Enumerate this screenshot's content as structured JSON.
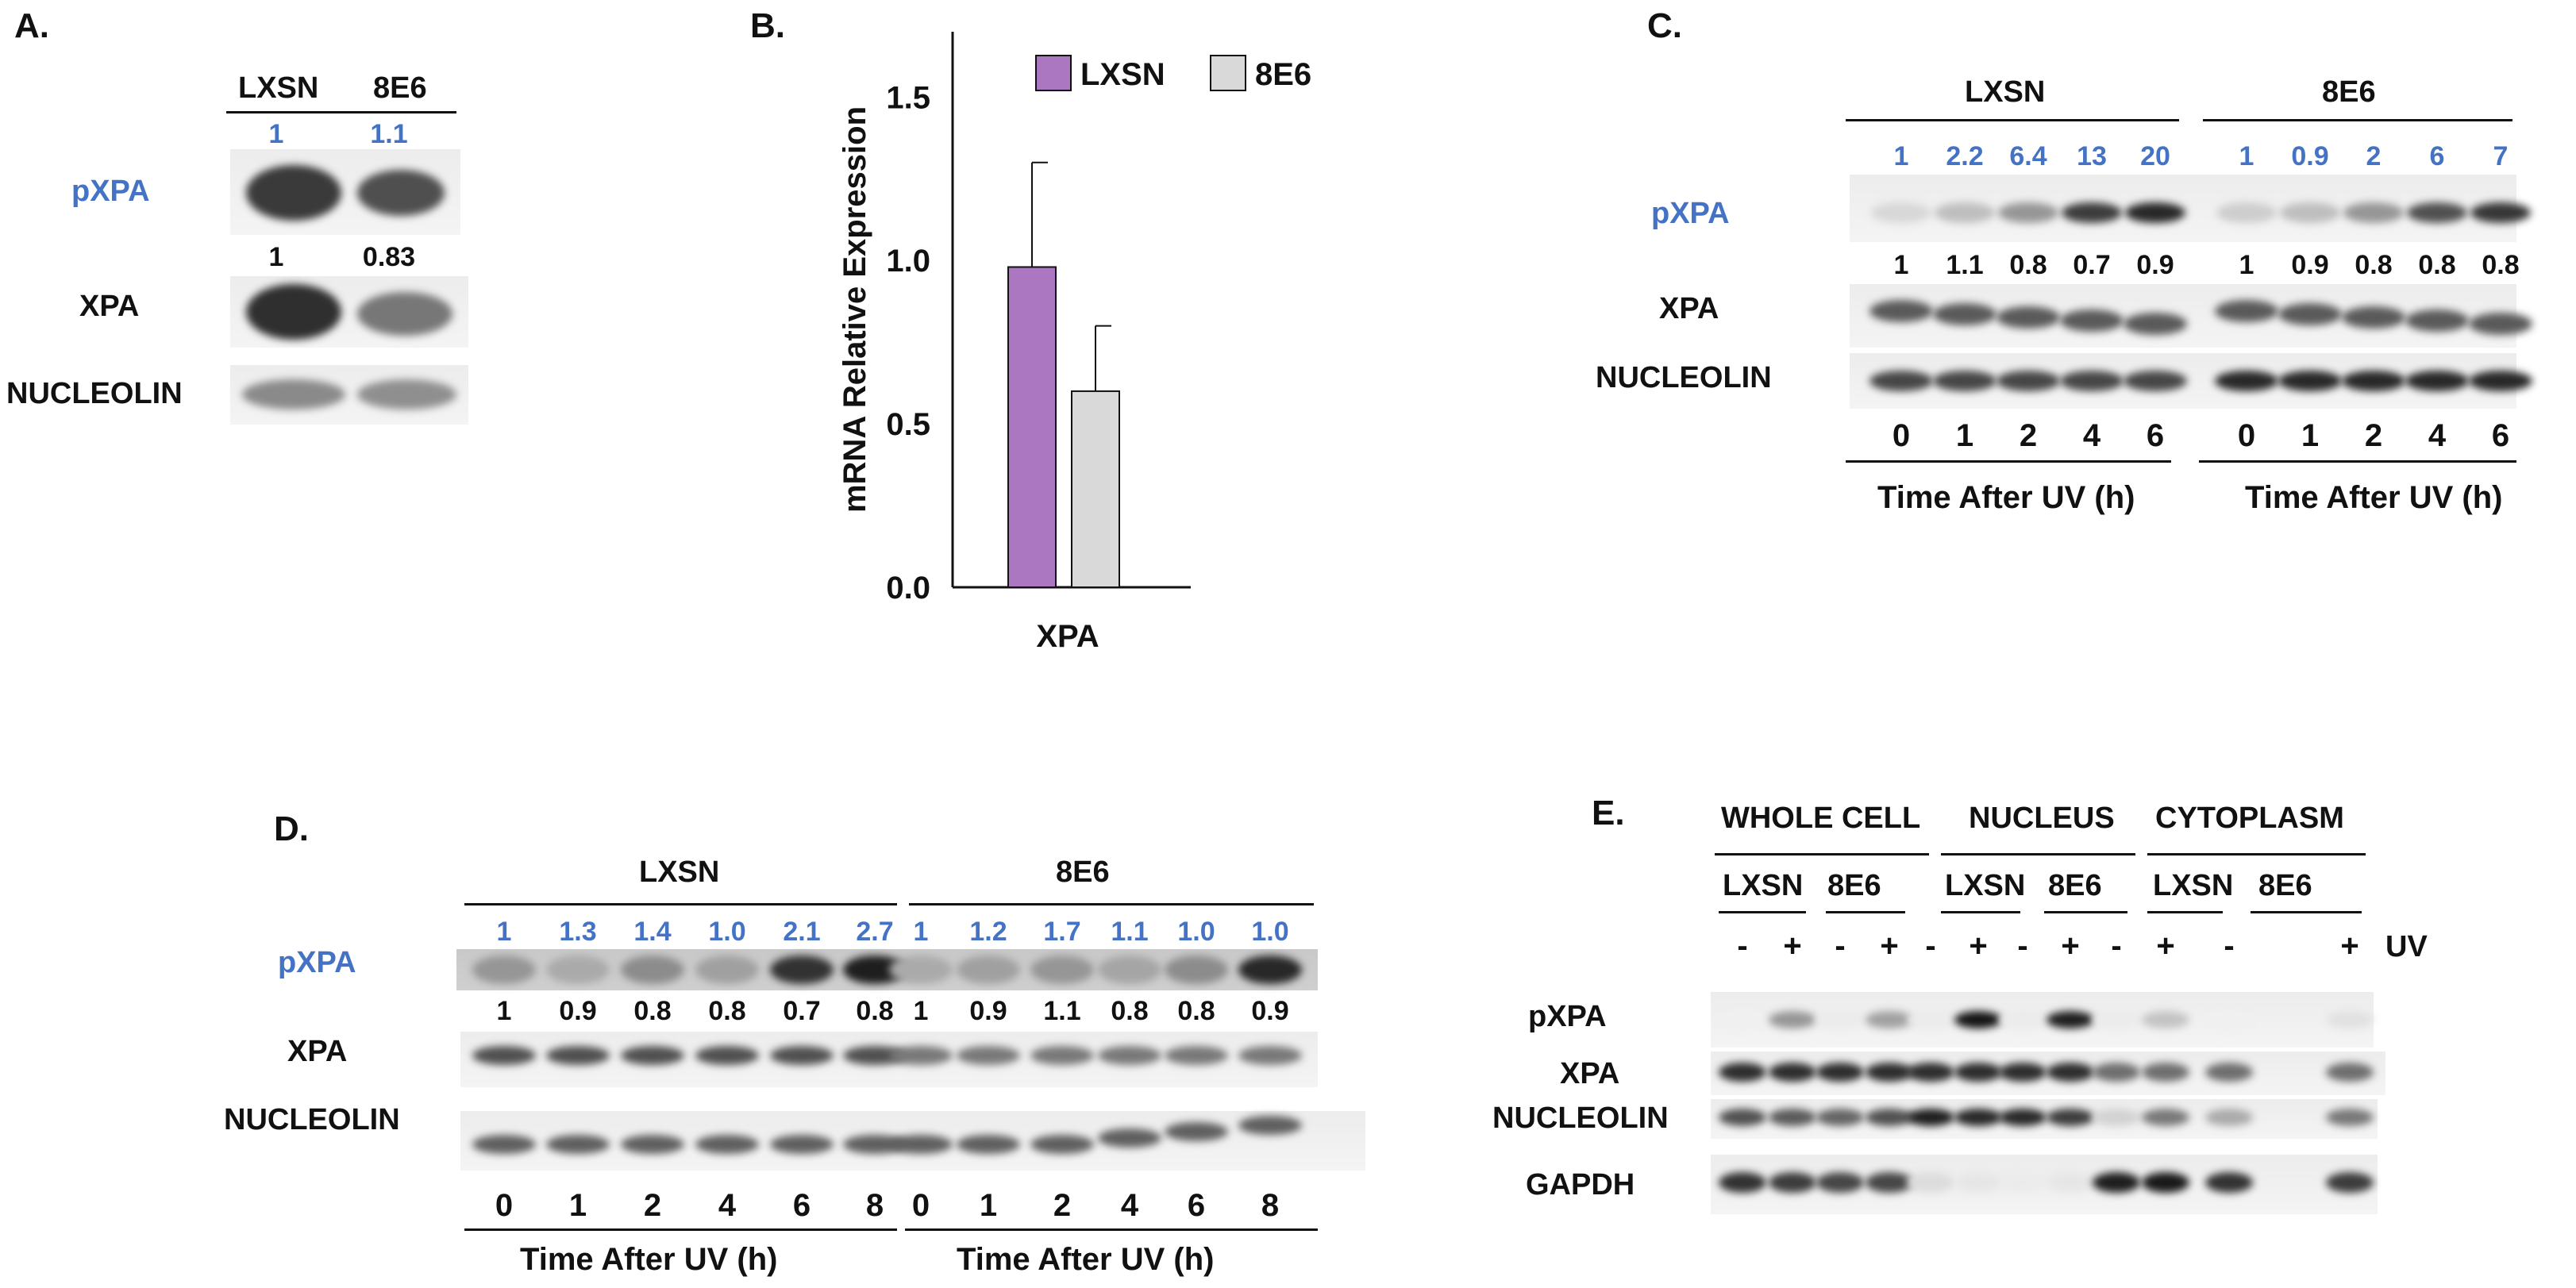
{
  "panelA": {
    "label": "A.",
    "lanes": [
      "LXSN",
      "8E6"
    ],
    "rows": [
      "pXPA",
      "XPA",
      "NUCLEOLIN"
    ],
    "pxpa_quant": [
      "1",
      "1.1"
    ],
    "xpa_quant": [
      "1",
      "0.83"
    ]
  },
  "panelB": {
    "label": "B.",
    "legend": [
      "LXSN",
      "8E6"
    ]
  },
  "chart_data": {
    "type": "bar",
    "title": "",
    "categories": [
      "XPA"
    ],
    "series": [
      {
        "name": "LXSN",
        "values": [
          0.98
        ],
        "error": [
          0.32
        ],
        "color": "#AA77C0"
      },
      {
        "name": "8E6",
        "values": [
          0.6
        ],
        "error": [
          0.2
        ],
        "color": "#D9D9D9"
      }
    ],
    "xlabel": "XPA",
    "ylabel": "mRNA Relative Expression",
    "ylim": [
      0,
      1.7
    ],
    "yticks": [
      "0.0",
      "0.5",
      "1.0",
      "1.5"
    ],
    "ytick_values": [
      0,
      0.5,
      1.0,
      1.5
    ],
    "grid": false,
    "legend_position": "top"
  },
  "panelC": {
    "label": "C.",
    "groups": [
      "LXSN",
      "8E6"
    ],
    "rows": [
      "pXPA",
      "XPA",
      "NUCLEOLIN"
    ],
    "pxpa_quant": [
      "1",
      "2.2",
      "6.4",
      "13",
      "20",
      "1",
      "0.9",
      "2",
      "6",
      "7"
    ],
    "xpa_quant": [
      "1",
      "1.1",
      "0.8",
      "0.7",
      "0.9",
      "1",
      "0.9",
      "0.8",
      "0.8",
      "0.8"
    ],
    "times": [
      "0",
      "1",
      "2",
      "4",
      "6",
      "0",
      "1",
      "2",
      "4",
      "6"
    ],
    "axis_title": "Time After UV (h)"
  },
  "panelD": {
    "label": "D.",
    "groups": [
      "LXSN",
      "8E6"
    ],
    "rows": [
      "pXPA",
      "XPA",
      "NUCLEOLIN"
    ],
    "pxpa_quant": [
      "1",
      "1.3",
      "1.4",
      "1.0",
      "2.1",
      "2.7",
      "1",
      "1.2",
      "1.7",
      "1.1",
      "1.0",
      "1.0"
    ],
    "xpa_quant": [
      "1",
      "0.9",
      "0.8",
      "0.8",
      "0.7",
      "0.8",
      "1",
      "0.9",
      "1.1",
      "0.8",
      "0.8",
      "0.9"
    ],
    "times": [
      "0",
      "1",
      "2",
      "4",
      "6",
      "8",
      "0",
      "1",
      "2",
      "4",
      "6",
      "8"
    ],
    "axis_title": "Time After UV (h)"
  },
  "panelE": {
    "label": "E.",
    "fractions": [
      "WHOLE CELL",
      "NUCLEUS",
      "CYTOPLASM"
    ],
    "lines": [
      "LXSN",
      "8E6",
      "LXSN",
      "8E6",
      "LXSN",
      "8E6"
    ],
    "uv_signs": [
      "-",
      "+",
      "-",
      "+",
      "-",
      "+",
      "-",
      "+",
      "-",
      "+",
      "-",
      "+"
    ],
    "uv_label": "UV",
    "rows": [
      "pXPA",
      "XPA",
      "NUCLEOLIN",
      "GAPDH"
    ]
  }
}
